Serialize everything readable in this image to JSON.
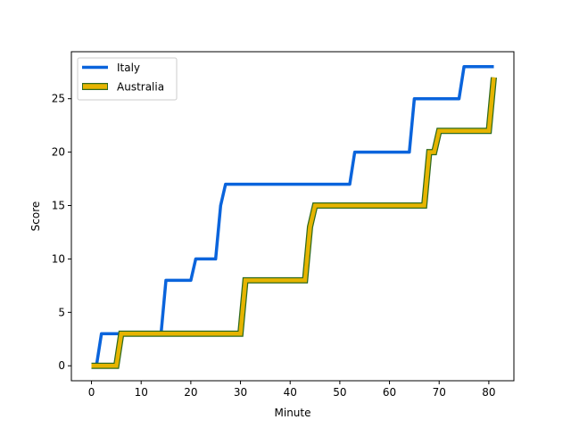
{
  "chart_data": {
    "type": "line",
    "xlabel": "Minute",
    "ylabel": "Score",
    "xlim": [
      -4.05,
      85.05
    ],
    "ylim": [
      -1.4,
      29.4
    ],
    "xticks": [
      0,
      10,
      20,
      30,
      40,
      50,
      60,
      70,
      80
    ],
    "yticks": [
      0,
      5,
      10,
      15,
      20,
      25
    ],
    "grid": false,
    "legend_position": "upper-left",
    "series": [
      {
        "name": "Italy",
        "color": "#0a64dc",
        "style": "solid",
        "x": [
          0,
          1,
          2,
          5,
          6,
          14,
          15,
          20,
          21,
          25,
          26,
          27,
          52,
          53,
          64,
          65,
          74,
          75,
          81
        ],
        "y": [
          0,
          0,
          3,
          3,
          3,
          3,
          8,
          8,
          10,
          10,
          15,
          17,
          17,
          20,
          20,
          25,
          25,
          28,
          28
        ]
      },
      {
        "name": "Australia",
        "color": "#e6b400",
        "edge_color": "#2f6b1f",
        "style": "outlined",
        "x": [
          0,
          5,
          6,
          30,
          31,
          43,
          44,
          45,
          67,
          68,
          69,
          70,
          80,
          81
        ],
        "y": [
          0,
          0,
          3,
          3,
          8,
          8,
          13,
          15,
          15,
          20,
          20,
          22,
          22,
          27
        ]
      }
    ]
  }
}
